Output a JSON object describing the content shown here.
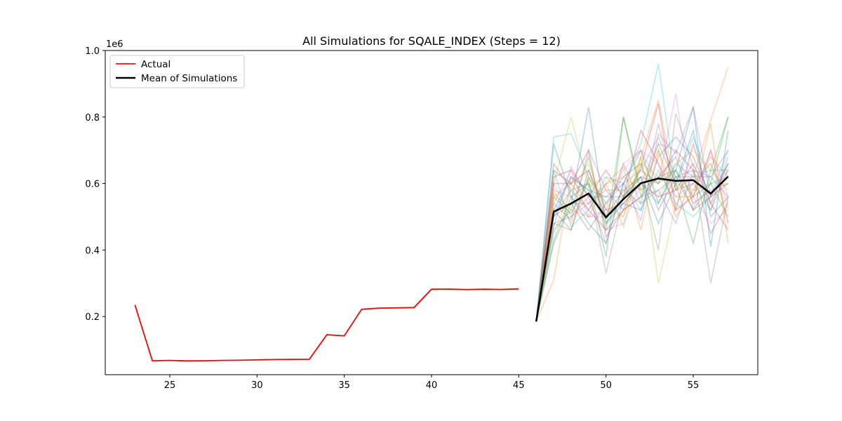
{
  "chart_data": {
    "type": "line",
    "title": "All Simulations for SQALE_INDEX (Steps = 12)",
    "xlabel": "",
    "ylabel": "",
    "y_offset_label": "1e6",
    "xlim": [
      21.3,
      58.7
    ],
    "ylim": [
      25000,
      1000000
    ],
    "x_ticks": [
      25,
      30,
      35,
      40,
      45,
      50,
      55
    ],
    "y_ticks": [
      200000,
      400000,
      600000,
      800000,
      1000000
    ],
    "y_tick_labels": [
      "0.2",
      "0.4",
      "0.6",
      "0.8",
      "1.0"
    ],
    "grid": false,
    "legend": {
      "position": "top-left",
      "entries": [
        "Actual",
        "Mean of Simulations"
      ]
    },
    "actual": {
      "name": "Actual",
      "color": "#ff0000",
      "x": [
        23,
        24,
        25,
        26,
        27,
        28,
        29,
        30,
        31,
        32,
        33,
        34,
        35,
        36,
        37,
        38,
        39,
        40,
        41,
        42,
        43,
        44,
        45
      ],
      "y": [
        235000,
        67000,
        68000,
        66500,
        67000,
        68000,
        68500,
        69500,
        70500,
        71000,
        71500,
        145000,
        142000,
        222000,
        225000,
        226000,
        227000,
        282000,
        282500,
        281000,
        282000,
        281500,
        283000
      ]
    },
    "mean": {
      "name": "Mean of Simulations",
      "color": "#000000",
      "x": [
        46,
        47,
        48,
        49,
        50,
        51,
        52,
        53,
        54,
        55,
        56,
        57
      ],
      "y": [
        185000,
        515000,
        540000,
        570000,
        498000,
        553000,
        601000,
        615000,
        608000,
        610000,
        570000,
        621000
      ]
    },
    "simulations": {
      "x": [
        46,
        47,
        48,
        49,
        50,
        51,
        52,
        53,
        54,
        55,
        56,
        57
      ],
      "colors": [
        "#1f77b4",
        "#ff7f0e",
        "#2ca02c",
        "#d62728",
        "#9467bd",
        "#8c564b",
        "#e377c2",
        "#7f7f7f",
        "#bcbd22",
        "#17becf"
      ],
      "series": [
        [
          185000,
          720000,
          560000,
          480000,
          420000,
          600000,
          700000,
          540000,
          640000,
          830000,
          410000,
          760000
        ],
        [
          185000,
          310000,
          620000,
          540000,
          600000,
          470000,
          680000,
          850000,
          580000,
          620000,
          790000,
          950000
        ],
        [
          185000,
          560000,
          510000,
          610000,
          380000,
          800000,
          560000,
          720000,
          600000,
          420000,
          640000,
          800000
        ],
        [
          185000,
          640000,
          600000,
          700000,
          440000,
          520000,
          650000,
          840000,
          520000,
          560000,
          700000,
          480000
        ],
        [
          185000,
          470000,
          650000,
          560000,
          560000,
          600000,
          490000,
          750000,
          690000,
          830000,
          560000,
          640000
        ],
        [
          185000,
          520000,
          460000,
          640000,
          500000,
          580000,
          620000,
          600000,
          700000,
          640000,
          450000,
          540000
        ],
        [
          185000,
          580000,
          560000,
          500000,
          520000,
          640000,
          700000,
          600000,
          870000,
          520000,
          700000,
          560000
        ],
        [
          185000,
          500000,
          580000,
          600000,
          330000,
          560000,
          620000,
          400000,
          810000,
          650000,
          300000,
          560000
        ],
        [
          185000,
          600000,
          800000,
          590000,
          620000,
          560000,
          680000,
          300000,
          540000,
          600000,
          660000,
          520000
        ],
        [
          185000,
          740000,
          750000,
          620000,
          540000,
          600000,
          720000,
          960000,
          590000,
          740000,
          600000,
          620000
        ],
        [
          185000,
          420000,
          540000,
          830000,
          480000,
          540000,
          520000,
          680000,
          740000,
          680000,
          560000,
          660000
        ],
        [
          185000,
          560000,
          600000,
          520000,
          600000,
          650000,
          460000,
          700000,
          560000,
          560000,
          780000,
          420000
        ],
        [
          185000,
          460000,
          520000,
          680000,
          460000,
          800000,
          580000,
          620000,
          640000,
          520000,
          600000,
          800000
        ],
        [
          185000,
          620000,
          640000,
          560000,
          640000,
          560000,
          760000,
          660000,
          520000,
          720000,
          540000,
          460000
        ],
        [
          185000,
          540000,
          490000,
          700000,
          580000,
          520000,
          560000,
          580000,
          480000,
          640000,
          620000,
          700000
        ],
        [
          185000,
          500000,
          540000,
          460000,
          540000,
          620000,
          660000,
          520000,
          620000,
          520000,
          560000,
          600000
        ],
        [
          185000,
          600000,
          500000,
          540000,
          460000,
          480000,
          600000,
          720000,
          700000,
          560000,
          480000,
          520000
        ],
        [
          185000,
          480000,
          460000,
          620000,
          500000,
          660000,
          540000,
          780000,
          580000,
          600000,
          520000,
          640000
        ],
        [
          185000,
          450000,
          580000,
          660000,
          520000,
          500000,
          680000,
          560000,
          660000,
          700000,
          640000,
          580000
        ],
        [
          185000,
          640000,
          470000,
          520000,
          620000,
          600000,
          520000,
          640000,
          540000,
          500000,
          560000,
          700000
        ],
        [
          185000,
          520000,
          620000,
          580000,
          560000,
          560000,
          620000,
          480000,
          600000,
          760000,
          500000,
          560000
        ],
        [
          185000,
          570000,
          520000,
          500000,
          600000,
          620000,
          580000,
          700000,
          500000,
          580000,
          680000,
          620000
        ],
        [
          185000,
          430000,
          560000,
          600000,
          480000,
          560000,
          640000,
          600000,
          640000,
          560000,
          600000,
          500000
        ],
        [
          185000,
          600000,
          600000,
          640000,
          520000,
          540000,
          600000,
          560000,
          580000,
          660000,
          540000,
          660000
        ],
        [
          185000,
          480000,
          500000,
          560000,
          420000,
          600000,
          640000,
          740000,
          620000,
          620000,
          620000,
          560000
        ],
        [
          185000,
          660000,
          580000,
          520000,
          460000,
          520000,
          560000,
          620000,
          680000,
          540000,
          580000,
          600000
        ],
        [
          185000,
          540000,
          640000,
          500000,
          500000,
          660000,
          700000,
          660000,
          560000,
          600000,
          660000,
          540000
        ],
        [
          185000,
          520000,
          540000,
          540000,
          580000,
          580000,
          540000,
          580000,
          620000,
          640000,
          520000,
          680000
        ],
        [
          185000,
          580000,
          480000,
          620000,
          540000,
          500000,
          660000,
          620000,
          600000,
          580000,
          600000,
          600000
        ],
        [
          185000,
          500000,
          620000,
          580000,
          500000,
          540000,
          600000,
          540000,
          660000,
          620000,
          640000,
          640000
        ]
      ]
    }
  }
}
